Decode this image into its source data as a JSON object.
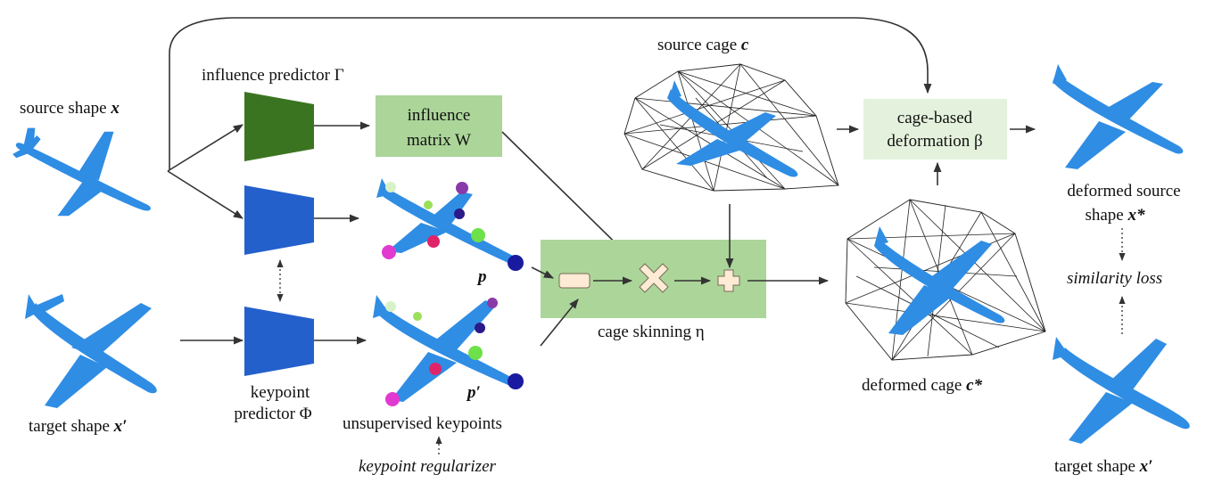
{
  "inputs": {
    "source_label": "source shape",
    "source_var": "x",
    "target_label": "target shape",
    "target_var": "x′"
  },
  "influence_predictor": {
    "label": "influence predictor Γ"
  },
  "influence_matrix": {
    "line1": "influence",
    "line2": "matrix W"
  },
  "keypoint_predictor": {
    "line1": "keypoint",
    "line2": "predictor Φ"
  },
  "keypoints": {
    "p_label": "p",
    "p_prime_label": "p′",
    "unsupervised_label": "unsupervised keypoints",
    "regularizer_label": "keypoint regularizer"
  },
  "cage_skinning": {
    "label": "cage skinning η"
  },
  "source_cage": {
    "label": "source cage",
    "var": "c"
  },
  "deformed_cage": {
    "label": "deformed cage",
    "var": "c*"
  },
  "cage_deformation": {
    "line1": "cage-based",
    "line2": "deformation β"
  },
  "outputs": {
    "deformed_line1": "deformed source",
    "deformed_line2": "shape",
    "deformed_var": "x*",
    "similarity_loss": "similarity loss",
    "target_label": "target shape",
    "target_var": "x′"
  },
  "colors": {
    "influence_network": "#3b7421",
    "keypoint_network": "#2460cc",
    "green_box": "#acd59a",
    "light_box": "#e4f2dd",
    "airplane": "#2f8de4"
  }
}
